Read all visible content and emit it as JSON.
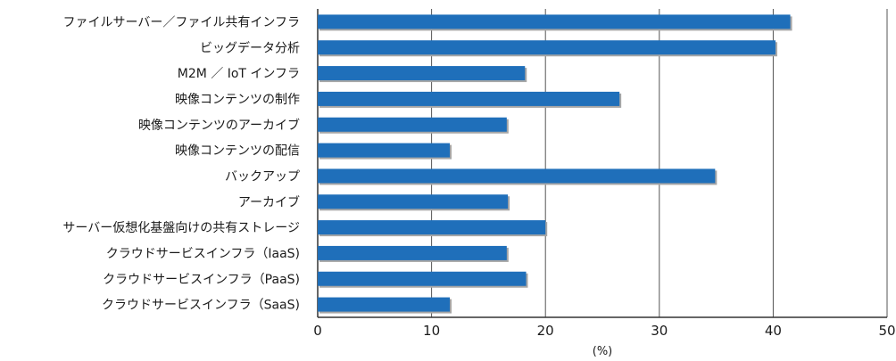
{
  "chart_data": {
    "type": "bar",
    "orientation": "horizontal",
    "categories": [
      "ファイルサーバー／ファイル共有インフラ",
      "ビッグデータ分析",
      "M2M ／ IoT インフラ",
      "映像コンテンツの制作",
      "映像コンテンツのアーカイブ",
      "映像コンテンツの配信",
      "バックアップ",
      "アーカイブ",
      "サーバー仮想化基盤向けの共有ストレージ",
      "クラウドサービスインフラ（IaaS)",
      "クラウドサービスインフラ（PaaS)",
      "クラウドサービスインフラ（SaaS)"
    ],
    "values": [
      41.5,
      40.2,
      18.2,
      26.5,
      16.6,
      11.6,
      34.9,
      16.7,
      20.0,
      16.6,
      18.3,
      11.6
    ],
    "xlabel": "(%)",
    "xlim": [
      0,
      50
    ],
    "xticks": [
      0,
      10,
      20,
      30,
      40,
      50
    ],
    "grid": "vertical",
    "colors": {
      "bar": "#1f6fba",
      "shadow": "#a6a6a6",
      "grid": "#555555",
      "axis": "#333333"
    }
  }
}
